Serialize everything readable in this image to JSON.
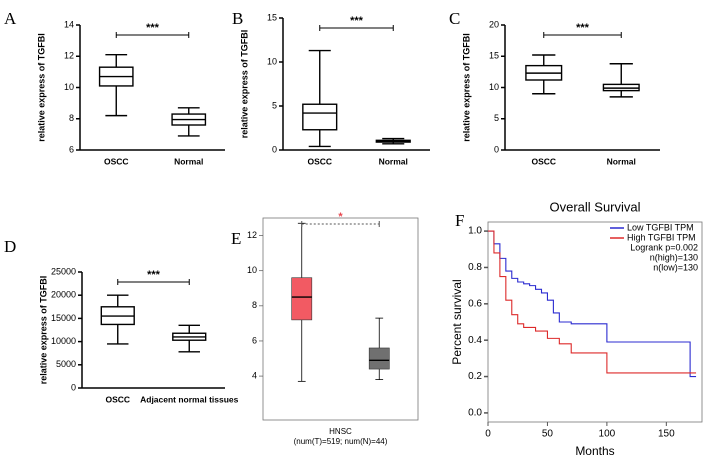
{
  "chart_data": [
    {
      "type": "box",
      "panel": "A",
      "ylabel": "relative express of TGFBI",
      "annotation": "***",
      "categories": [
        "OSCC",
        "Normal"
      ],
      "colors": [
        "#ffffff",
        "#ffffff"
      ],
      "boxes": [
        {
          "min": 8.2,
          "q1": 10.1,
          "median": 10.7,
          "q3": 11.3,
          "max": 12.1
        },
        {
          "min": 6.9,
          "q1": 7.6,
          "median": 7.95,
          "q3": 8.3,
          "max": 8.7
        }
      ],
      "ylim": [
        6,
        14
      ],
      "yticks": [
        6,
        8,
        10,
        12,
        14
      ]
    },
    {
      "type": "box",
      "panel": "B",
      "ylabel": "relative express of TGFBI",
      "annotation": "***",
      "categories": [
        "OSCC",
        "Normal"
      ],
      "colors": [
        "#ffffff",
        "#ffffff"
      ],
      "boxes": [
        {
          "min": 0.4,
          "q1": 2.3,
          "median": 4.2,
          "q3": 5.2,
          "max": 11.3
        },
        {
          "min": 0.7,
          "q1": 0.9,
          "median": 1.0,
          "q3": 1.1,
          "max": 1.3
        }
      ],
      "ylim": [
        0,
        15
      ],
      "yticks": [
        0,
        5,
        10,
        15
      ]
    },
    {
      "type": "box",
      "panel": "C",
      "ylabel": "relative express of TGFBI",
      "annotation": "***",
      "categories": [
        "OSCC",
        "Normal"
      ],
      "colors": [
        "#ffffff",
        "#ffffff"
      ],
      "boxes": [
        {
          "min": 9,
          "q1": 11.2,
          "median": 12.3,
          "q3": 13.5,
          "max": 15.2
        },
        {
          "min": 8.5,
          "q1": 9.5,
          "median": 9.9,
          "q3": 10.5,
          "max": 13.8
        }
      ],
      "ylim": [
        0,
        20
      ],
      "yticks": [
        0,
        5,
        10,
        15,
        20
      ]
    },
    {
      "type": "box",
      "panel": "D",
      "ylabel": "relative express of TGFBI",
      "annotation": "***",
      "categories": [
        "OSCC",
        "Adjacent normal tissues"
      ],
      "colors": [
        "#ffffff",
        "#ffffff"
      ],
      "boxes": [
        {
          "min": 9500,
          "q1": 13700,
          "median": 15500,
          "q3": 17500,
          "max": 20000
        },
        {
          "min": 7800,
          "q1": 10300,
          "median": 11000,
          "q3": 11800,
          "max": 13500
        }
      ],
      "ylim": [
        0,
        25000
      ],
      "yticks": [
        0,
        5000,
        10000,
        15000,
        20000,
        25000
      ]
    },
    {
      "type": "box",
      "panel": "E",
      "annotation": "*",
      "annotation_color": "#e8474f",
      "x_label_lines": [
        "HNSC",
        "(num(T)=519; num(N)=44)"
      ],
      "categories": [
        null,
        null
      ],
      "colors": [
        "#f25a63",
        "#707070"
      ],
      "boxes": [
        {
          "min": 3.7,
          "q1": 7.2,
          "median": 8.5,
          "q3": 9.6,
          "max": 12.7
        },
        {
          "min": 3.8,
          "q1": 4.4,
          "median": 4.9,
          "q3": 5.6,
          "max": 7.3
        }
      ],
      "ylim": [
        1.5,
        13
      ],
      "yticks": [
        4,
        6,
        8,
        10,
        12
      ]
    },
    {
      "type": "survival",
      "panel": "F",
      "title": "Overall Survival",
      "xlabel": "Months",
      "ylabel": "Percent survival",
      "legend": "upper right",
      "legend_notes": [
        "Logrank p=0.002",
        "n(high)=130",
        "n(low)=130"
      ],
      "series": [
        {
          "name": "Low TGFBI TPM",
          "color": "#2b2bd0",
          "x": [
            0,
            5,
            10,
            15,
            20,
            25,
            30,
            35,
            40,
            45,
            50,
            55,
            60,
            70,
            80,
            90,
            100,
            120,
            140,
            160,
            170,
            175
          ],
          "values": [
            1,
            0.93,
            0.85,
            0.78,
            0.74,
            0.72,
            0.71,
            0.7,
            0.68,
            0.66,
            0.62,
            0.55,
            0.5,
            0.49,
            0.49,
            0.49,
            0.39,
            0.39,
            0.39,
            0.39,
            0.2,
            0.2
          ]
        },
        {
          "name": "High TGFBI TPM",
          "color": "#dd2a2a",
          "x": [
            0,
            5,
            10,
            15,
            20,
            25,
            30,
            40,
            50,
            60,
            70,
            80,
            100,
            120,
            160,
            175
          ],
          "values": [
            1,
            0.88,
            0.75,
            0.62,
            0.54,
            0.49,
            0.47,
            0.45,
            0.41,
            0.38,
            0.33,
            0.33,
            0.22,
            0.22,
            0.22,
            0.22
          ]
        }
      ],
      "xlim": [
        0,
        180
      ],
      "xticks": [
        0,
        50,
        100,
        150
      ],
      "ylim": [
        -0.05,
        1.05
      ],
      "yticks": [
        {
          "value": 0,
          "label": "0.0"
        },
        {
          "value": 0.2,
          "label": "0.2"
        },
        {
          "value": 0.4,
          "label": "0.4"
        },
        {
          "value": 0.6,
          "label": "0.6"
        },
        {
          "value": 0.8,
          "label": "0.8"
        },
        {
          "value": 1,
          "label": "1.0"
        }
      ]
    }
  ]
}
